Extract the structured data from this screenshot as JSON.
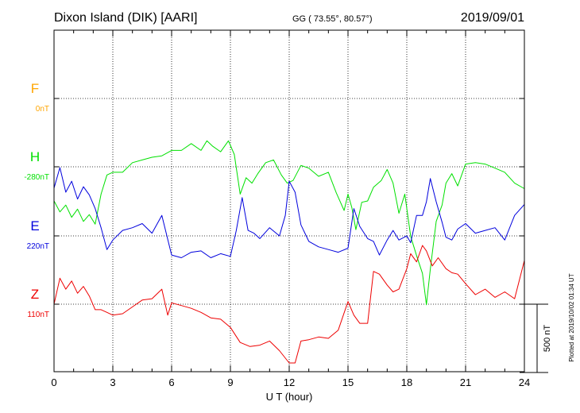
{
  "header": {
    "station": "Dixon Island (DIK)  [AARI]",
    "coords": "GG ( 73.55°,  80.57°)",
    "date": "2019/09/01"
  },
  "plotted_note": "Plotted at 2019/10/02 01:34 UT",
  "chart_data": {
    "type": "line",
    "xlabel": "U T (hour)",
    "xlim": [
      0,
      24
    ],
    "xticks": [
      "0",
      "3",
      "6",
      "9",
      "12",
      "15",
      "18",
      "21",
      "24"
    ],
    "scale_bar": {
      "label": "500 nT",
      "value_nT": 500
    },
    "series": [
      {
        "name": "F",
        "baseline_label": "0nT",
        "color": "#ffa500",
        "x": [],
        "y": []
      },
      {
        "name": "H",
        "baseline_label": "-280nT",
        "color": "#00e000",
        "x": [
          0,
          0.3,
          0.6,
          0.9,
          1.2,
          1.5,
          1.8,
          2.1,
          2.4,
          2.7,
          3.0,
          3.5,
          4.0,
          4.5,
          5.0,
          5.5,
          6.0,
          6.5,
          7.0,
          7.5,
          7.8,
          8.1,
          8.5,
          8.9,
          9.2,
          9.5,
          9.8,
          10.1,
          10.4,
          10.8,
          11.2,
          11.6,
          11.9,
          12.2,
          12.6,
          13.0,
          13.5,
          14.0,
          14.4,
          14.8,
          15.0,
          15.2,
          15.4,
          15.7,
          16.0,
          16.3,
          16.7,
          17.0,
          17.3,
          17.6,
          17.9,
          18.2,
          18.5,
          18.8,
          19.0,
          19.2,
          19.5,
          19.8,
          20.0,
          20.3,
          20.6,
          21.0,
          21.5,
          22.0,
          22.5,
          23.0,
          23.5,
          24.0
        ],
        "y": [
          -250,
          -330,
          -280,
          -370,
          -310,
          -400,
          -350,
          -420,
          -200,
          -60,
          -40,
          -40,
          30,
          50,
          70,
          80,
          120,
          120,
          170,
          120,
          190,
          150,
          110,
          190,
          90,
          -200,
          -80,
          -120,
          -50,
          30,
          50,
          -60,
          -120,
          -100,
          10,
          -10,
          -70,
          -40,
          -190,
          -320,
          -200,
          -300,
          -460,
          -260,
          -250,
          -150,
          -100,
          -20,
          -120,
          -340,
          -200,
          -510,
          -650,
          -780,
          -1010,
          -750,
          -400,
          -280,
          -120,
          -50,
          -140,
          20,
          30,
          20,
          -10,
          -40,
          -120,
          -160
        ]
      },
      {
        "name": "E",
        "baseline_label": "220nT",
        "color": "#0000dd",
        "x": [
          0,
          0.3,
          0.6,
          0.9,
          1.2,
          1.5,
          1.8,
          2.1,
          2.4,
          2.7,
          3.0,
          3.5,
          4.0,
          4.5,
          5.0,
          5.5,
          6.0,
          6.5,
          7.0,
          7.5,
          8.0,
          8.5,
          9.0,
          9.3,
          9.6,
          9.9,
          10.2,
          10.5,
          11.0,
          11.5,
          11.8,
          12.0,
          12.3,
          12.6,
          13.0,
          13.5,
          14.0,
          14.5,
          15.0,
          15.3,
          15.6,
          16.0,
          16.3,
          16.6,
          17.0,
          17.3,
          17.6,
          18.0,
          18.2,
          18.5,
          18.8,
          19.0,
          19.2,
          19.5,
          19.8,
          20.0,
          20.3,
          20.6,
          21.0,
          21.5,
          22.0,
          22.5,
          23.0,
          23.5,
          24.0
        ],
        "y": [
          350,
          500,
          320,
          400,
          270,
          360,
          300,
          200,
          60,
          -100,
          -30,
          40,
          60,
          90,
          20,
          150,
          -140,
          -160,
          -120,
          -110,
          -160,
          -130,
          -150,
          40,
          280,
          40,
          20,
          -20,
          60,
          0,
          150,
          400,
          320,
          80,
          -40,
          -80,
          -100,
          -120,
          -90,
          200,
          70,
          -20,
          -40,
          -140,
          -30,
          40,
          -30,
          0,
          -50,
          150,
          150,
          250,
          420,
          250,
          100,
          -10,
          -30,
          50,
          90,
          20,
          40,
          60,
          -30,
          150,
          230
        ]
      },
      {
        "name": "Z",
        "baseline_label": "110nT",
        "color": "#ee0000",
        "x": [
          0,
          0.3,
          0.6,
          0.9,
          1.2,
          1.5,
          1.8,
          2.1,
          2.4,
          2.7,
          3.0,
          3.5,
          4.0,
          4.5,
          5.0,
          5.5,
          5.8,
          6.0,
          6.5,
          7.0,
          7.5,
          8.0,
          8.5,
          9.0,
          9.5,
          10.0,
          10.5,
          11.0,
          11.5,
          12.0,
          12.3,
          12.6,
          13.0,
          13.5,
          14.0,
          14.5,
          15.0,
          15.3,
          15.6,
          16.0,
          16.3,
          16.6,
          17.0,
          17.3,
          17.6,
          18.0,
          18.2,
          18.5,
          18.8,
          19.0,
          19.3,
          19.6,
          20.0,
          20.3,
          20.6,
          21.0,
          21.5,
          22.0,
          22.5,
          23.0,
          23.5,
          24.0
        ],
        "y": [
          0,
          190,
          110,
          170,
          80,
          130,
          60,
          -40,
          -40,
          -60,
          -80,
          -70,
          -20,
          30,
          40,
          110,
          -80,
          10,
          -10,
          -30,
          -60,
          -100,
          -110,
          -170,
          -280,
          -310,
          -300,
          -270,
          -340,
          -430,
          -430,
          -270,
          -260,
          -240,
          -250,
          -190,
          20,
          -80,
          -140,
          -140,
          240,
          220,
          140,
          90,
          110,
          260,
          370,
          310,
          430,
          390,
          280,
          340,
          260,
          230,
          220,
          150,
          70,
          110,
          50,
          90,
          40,
          320
        ]
      }
    ]
  }
}
